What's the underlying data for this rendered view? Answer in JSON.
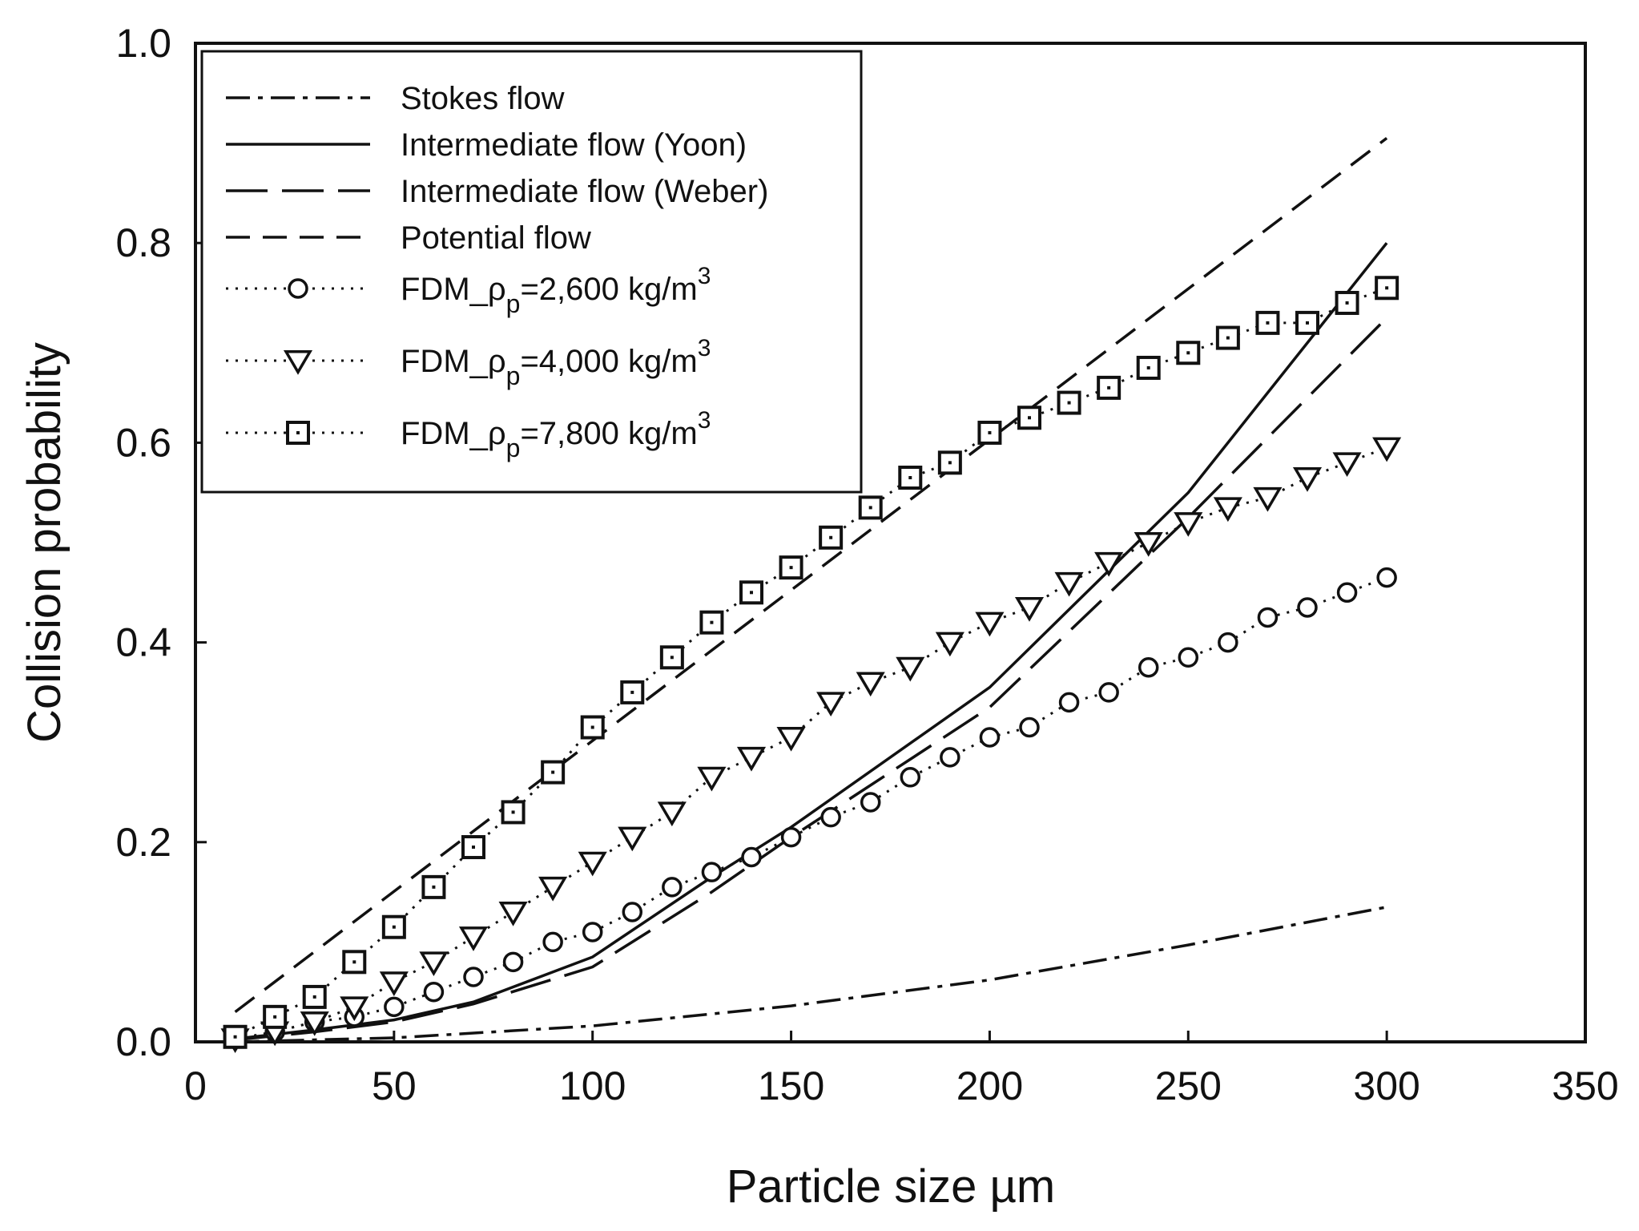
{
  "chart_data": {
    "type": "line",
    "xlabel": "Particle size  µm",
    "ylabel": "Collision probability",
    "xlim": [
      0,
      350
    ],
    "ylim": [
      0,
      1.0
    ],
    "xticks": [
      "0",
      "50",
      "100",
      "150",
      "200",
      "250",
      "300",
      "350"
    ],
    "yticks": [
      "0.0",
      "0.2",
      "0.4",
      "0.6",
      "0.8",
      "1.0"
    ],
    "grid": false,
    "legend_position": "top-left",
    "series": [
      {
        "name": "Stokes flow",
        "style": "dash-dot",
        "marker": "none",
        "x": [
          10,
          50,
          100,
          150,
          200,
          250,
          300
        ],
        "y": [
          0.0,
          0.004,
          0.016,
          0.036,
          0.062,
          0.097,
          0.135
        ]
      },
      {
        "name": "Intermediate flow (Yoon)",
        "style": "solid",
        "marker": "none",
        "x": [
          10,
          30,
          50,
          70,
          100,
          130,
          150,
          200,
          250,
          300
        ],
        "y": [
          0.003,
          0.012,
          0.022,
          0.04,
          0.085,
          0.165,
          0.215,
          0.355,
          0.55,
          0.8
        ]
      },
      {
        "name": "Intermediate flow (Weber)",
        "style": "long-dash",
        "marker": "none",
        "x": [
          10,
          30,
          50,
          70,
          100,
          130,
          150,
          200,
          250,
          300
        ],
        "y": [
          0.002,
          0.01,
          0.02,
          0.038,
          0.075,
          0.15,
          0.205,
          0.335,
          0.525,
          0.725
        ]
      },
      {
        "name": "Potential flow",
        "style": "dash",
        "marker": "none",
        "x": [
          10,
          300
        ],
        "y": [
          0.03,
          0.905
        ]
      },
      {
        "name_parts": [
          "FDM_ρ",
          "p",
          "=2,600 kg/m",
          "3"
        ],
        "style": "dotted",
        "marker": "circle",
        "x": [
          10,
          20,
          30,
          40,
          50,
          60,
          70,
          80,
          90,
          100,
          110,
          120,
          130,
          140,
          150,
          160,
          170,
          180,
          190,
          200,
          210,
          220,
          230,
          240,
          250,
          260,
          270,
          280,
          290,
          300
        ],
        "y": [
          0.003,
          0.01,
          0.02,
          0.025,
          0.035,
          0.05,
          0.065,
          0.08,
          0.1,
          0.11,
          0.13,
          0.155,
          0.17,
          0.185,
          0.205,
          0.225,
          0.24,
          0.265,
          0.285,
          0.305,
          0.315,
          0.34,
          0.35,
          0.375,
          0.385,
          0.4,
          0.425,
          0.435,
          0.45,
          0.465
        ]
      },
      {
        "name_parts": [
          "FDM_ρ",
          "p",
          "=4,000 kg/m",
          "3"
        ],
        "style": "dotted",
        "marker": "triangle-down",
        "x": [
          10,
          20,
          30,
          40,
          50,
          60,
          70,
          80,
          90,
          100,
          110,
          120,
          130,
          140,
          150,
          160,
          170,
          180,
          190,
          200,
          210,
          220,
          230,
          240,
          250,
          260,
          270,
          280,
          290,
          300
        ],
        "y": [
          0.003,
          0.01,
          0.02,
          0.035,
          0.06,
          0.08,
          0.105,
          0.13,
          0.155,
          0.18,
          0.205,
          0.23,
          0.265,
          0.285,
          0.305,
          0.34,
          0.36,
          0.375,
          0.4,
          0.42,
          0.435,
          0.46,
          0.48,
          0.5,
          0.52,
          0.535,
          0.545,
          0.565,
          0.58,
          0.595
        ]
      },
      {
        "name_parts": [
          "FDM_ρ",
          "p",
          "=7,800 kg/m",
          "3"
        ],
        "style": "dotted",
        "marker": "square",
        "x": [
          10,
          20,
          30,
          40,
          50,
          60,
          70,
          80,
          90,
          100,
          110,
          120,
          130,
          140,
          150,
          160,
          170,
          180,
          190,
          200,
          210,
          220,
          230,
          240,
          250,
          260,
          270,
          280,
          290,
          300
        ],
        "y": [
          0.005,
          0.025,
          0.045,
          0.08,
          0.115,
          0.155,
          0.195,
          0.23,
          0.27,
          0.315,
          0.35,
          0.385,
          0.42,
          0.45,
          0.475,
          0.505,
          0.535,
          0.565,
          0.58,
          0.61,
          0.625,
          0.64,
          0.655,
          0.675,
          0.69,
          0.705,
          0.72,
          0.72,
          0.74,
          0.755
        ]
      }
    ]
  }
}
